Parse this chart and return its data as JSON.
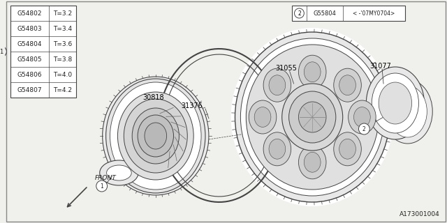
{
  "bg_color": "#f0f0ec",
  "lc": "#444444",
  "diagram_id": "A173001004",
  "table_data": [
    [
      "G54802",
      "T=3.2"
    ],
    [
      "G54803",
      "T=3.4"
    ],
    [
      "G54804",
      "T=3.6"
    ],
    [
      "G54805",
      "T=3.8"
    ],
    [
      "G54806",
      "T=4.0"
    ],
    [
      "G54807",
      "T=4.2"
    ]
  ],
  "ref_box": [
    "2",
    "G55804",
    "< -'07MY0704>"
  ],
  "part_labels": [
    "30818",
    "31376",
    "31055",
    "31077"
  ],
  "front_label": "FRONT"
}
